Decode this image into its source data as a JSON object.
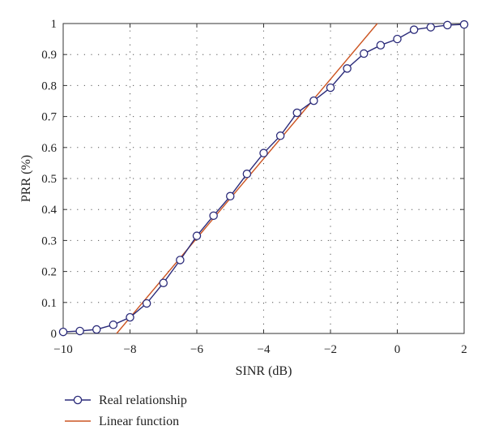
{
  "chart_data": {
    "type": "line",
    "xlabel": "SINR (dB)",
    "ylabel": "PRR (%)",
    "xlim": [
      -10,
      2
    ],
    "ylim": [
      0,
      1
    ],
    "grid": true,
    "legend_position": "bottom-left",
    "x_ticks": [
      "−10",
      "−8",
      "−6",
      "−4",
      "−2",
      "0",
      "2"
    ],
    "y_ticks": [
      "0",
      "0.1",
      "0.2",
      "0.3",
      "0.4",
      "0.5",
      "0.6",
      "0.7",
      "0.8",
      "0.9",
      "1"
    ],
    "series": [
      {
        "name": "Real relationship",
        "color": "#2b2b7a",
        "marker": "circle",
        "x": [
          -10,
          -9.5,
          -9,
          -8.5,
          -8,
          -7.5,
          -7,
          -6.5,
          -6,
          -5.5,
          -5,
          -4.5,
          -4,
          -3.5,
          -3,
          -2.5,
          -2,
          -1.5,
          -1,
          -0.5,
          0,
          0.5,
          1,
          1.5,
          2
        ],
        "y": [
          0.005,
          0.008,
          0.013,
          0.028,
          0.052,
          0.097,
          0.163,
          0.237,
          0.315,
          0.38,
          0.443,
          0.515,
          0.582,
          0.638,
          0.712,
          0.751,
          0.793,
          0.855,
          0.903,
          0.93,
          0.95,
          0.98,
          0.988,
          0.995,
          0.997
        ]
      },
      {
        "name": "Linear function",
        "color": "#cc5522",
        "marker": "none",
        "x": [
          -8.4,
          -0.6
        ],
        "y": [
          0.0,
          1.0
        ]
      }
    ]
  }
}
